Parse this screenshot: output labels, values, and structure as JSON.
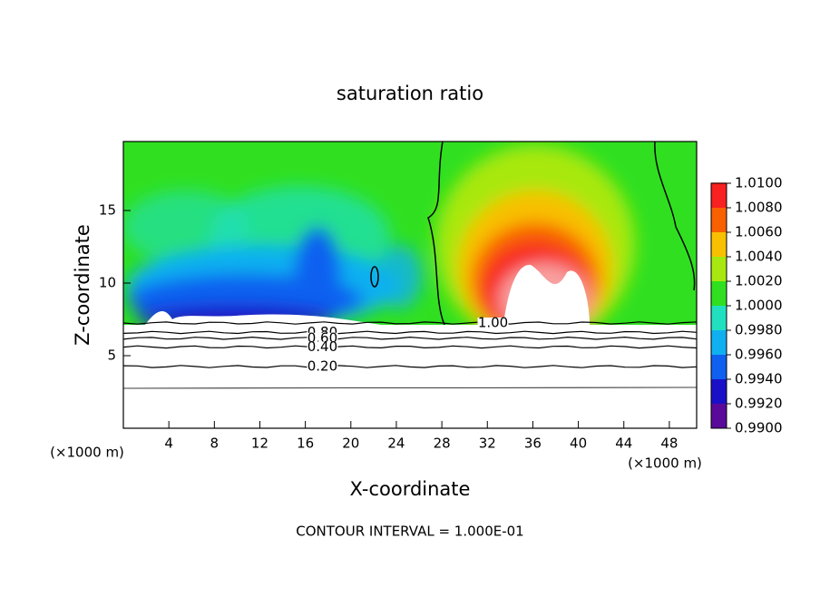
{
  "chart_data": {
    "type": "contour",
    "title": "saturation ratio",
    "x_label": "X-coordinate",
    "y_label": "Z-coordinate",
    "x_unit": "(×1000 m)",
    "footer": "CONTOUR INTERVAL = 1.000E-01",
    "xlim": [
      0,
      50.4
    ],
    "ylim": [
      0,
      19.75
    ],
    "xticks": [
      4,
      8,
      12,
      16,
      20,
      24,
      28,
      32,
      36,
      40,
      44,
      48
    ],
    "yticks": [
      5,
      10,
      15
    ],
    "colorbar": {
      "ticks": [
        {
          "value": 0.99,
          "label": "0.9900"
        },
        {
          "value": 0.992,
          "label": "0.9920"
        },
        {
          "value": 0.994,
          "label": "0.9940"
        },
        {
          "value": 0.996,
          "label": "0.9960"
        },
        {
          "value": 0.998,
          "label": "0.9980"
        },
        {
          "value": 1.0,
          "label": "1.0000"
        },
        {
          "value": 1.002,
          "label": "1.0020"
        },
        {
          "value": 1.004,
          "label": "1.0040"
        },
        {
          "value": 1.006,
          "label": "1.0060"
        },
        {
          "value": 1.008,
          "label": "1.0080"
        },
        {
          "value": 1.01,
          "label": "1.0100"
        }
      ],
      "colors": [
        "#5a0a9a",
        "#1a10c8",
        "#1060f0",
        "#10b0f0",
        "#20e0c0",
        "#30e020",
        "#a8e810",
        "#f8c000",
        "#f86000",
        "#f82020",
        "#f8a0a0"
      ]
    },
    "contours": [
      {
        "value": 1.0,
        "label": "1.00",
        "z": 7.25,
        "x": 32.5
      },
      {
        "value": 0.8,
        "label": "0.80",
        "z": 6.6,
        "x": 17.5
      },
      {
        "value": 0.6,
        "label": "0.60",
        "z": 6.2,
        "x": 17.5
      },
      {
        "value": 0.4,
        "label": "0.40",
        "z": 5.6,
        "x": 17.5
      },
      {
        "value": 0.2,
        "label": "0.20",
        "z": 4.25,
        "x": 17.5
      }
    ]
  }
}
